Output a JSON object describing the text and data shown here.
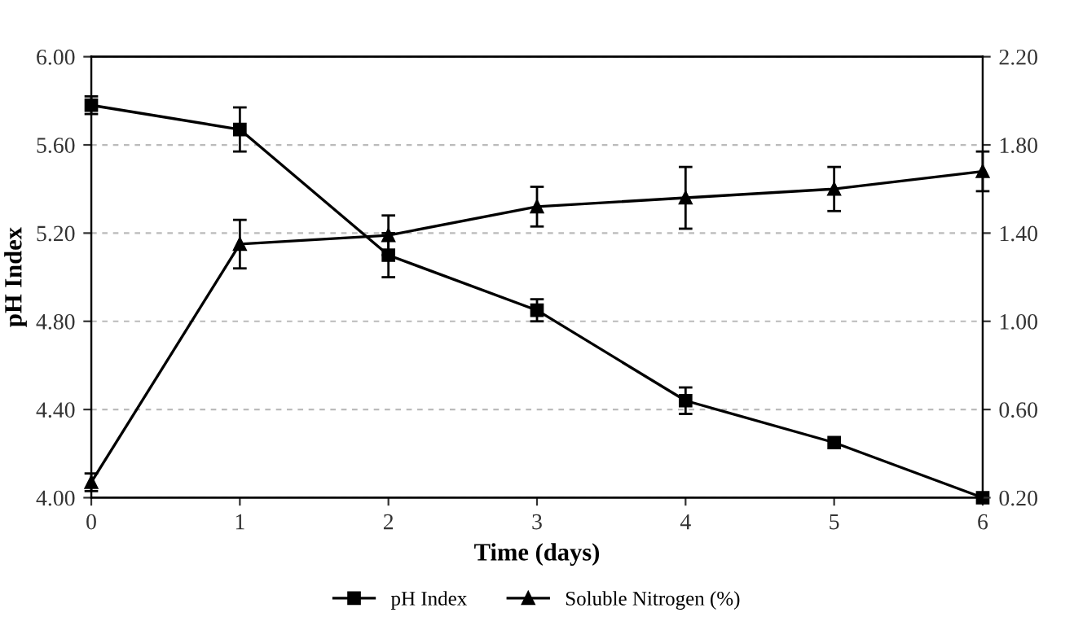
{
  "chart_data": {
    "type": "line",
    "xlabel": "Time (days)",
    "ylabel": "pH Index",
    "x": [
      0,
      1,
      2,
      3,
      4,
      5,
      6
    ],
    "xlim": [
      0,
      6
    ],
    "xticks": [
      0,
      1,
      2,
      3,
      4,
      5,
      6
    ],
    "ylim": [
      4.0,
      6.0
    ],
    "yticks": [
      {
        "value": 4.0,
        "label": "4.00"
      },
      {
        "value": 4.4,
        "label": "4.40"
      },
      {
        "value": 4.8,
        "label": "4.80"
      },
      {
        "value": 5.2,
        "label": "5.20"
      },
      {
        "value": 5.6,
        "label": "5.60"
      },
      {
        "value": 6.0,
        "label": "6.00"
      }
    ],
    "y2lim": [
      0.2,
      2.2
    ],
    "y2ticks": [
      {
        "value": 0.2,
        "label": "0.20"
      },
      {
        "value": 0.6,
        "label": "0.60"
      },
      {
        "value": 1.0,
        "label": "1.00"
      },
      {
        "value": 1.4,
        "label": "1.40"
      },
      {
        "value": 1.8,
        "label": "1.80"
      },
      {
        "value": 2.2,
        "label": "2.20"
      }
    ],
    "grid": "y",
    "legend": "bottom",
    "line_style": "solid",
    "series": [
      {
        "name": "pH Index",
        "color": "#000000",
        "marker": "square",
        "values": [
          5.78,
          5.67,
          5.1,
          4.85,
          4.44,
          4.25,
          4.0
        ],
        "errors": [
          0.04,
          0.1,
          0.1,
          0.05,
          0.06,
          null,
          null
        ]
      },
      {
        "name": "Soluble Nitrogen (%)",
        "color": "#000000",
        "marker": "triangle",
        "axis": "y2",
        "values": [
          0.27,
          1.35,
          1.39,
          1.52,
          1.56,
          1.6,
          1.68
        ],
        "errors": [
          0.04,
          0.11,
          0.09,
          0.09,
          0.14,
          0.1,
          0.09
        ]
      }
    ]
  }
}
